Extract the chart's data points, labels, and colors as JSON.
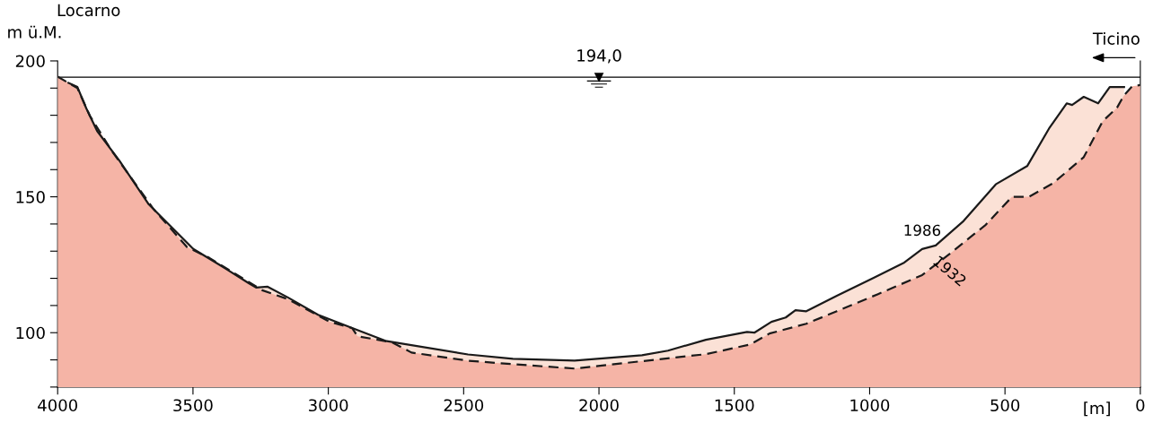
{
  "chart_data": {
    "type": "area",
    "title": "Locarno",
    "xlabel": "[m]",
    "ylabel": "m ü.M.",
    "annotations": [
      "Ticino"
    ],
    "xlim": [
      4000,
      0
    ],
    "xticks": [
      4000,
      3500,
      3000,
      2500,
      2000,
      1500,
      1000,
      500,
      0
    ],
    "ylim": [
      80,
      200
    ],
    "yticks": [
      {
        "value": 80,
        "label": null
      },
      {
        "value": 90,
        "label": null
      },
      100,
      {
        "value": 110,
        "label": null
      },
      {
        "value": 120,
        "label": null
      },
      {
        "value": 130,
        "label": null
      },
      {
        "value": 140,
        "label": null
      },
      150,
      {
        "value": 160,
        "label": null
      },
      {
        "value": 170,
        "label": null
      },
      {
        "value": 180,
        "label": null
      },
      {
        "value": 190,
        "label": null
      },
      200
    ],
    "ref_lines": [
      {
        "axis": "y",
        "value": 194,
        "label": "194,0",
        "color": "#000000",
        "line_style": "solid"
      }
    ],
    "grid": false,
    "legend": false,
    "series": [
      {
        "name": "1986",
        "color": "#fbe1d6",
        "line_style": "solid",
        "x": [
          3960,
          3927,
          3894,
          3854,
          3771,
          3665,
          3499,
          3383,
          3294,
          3267,
          3224,
          3148,
          3038,
          2912,
          2789,
          2484,
          2318,
          2090,
          1841,
          1745,
          1605,
          1453,
          1426,
          1363,
          1310,
          1274,
          1234,
          1121,
          985,
          872,
          806,
          756,
          653,
          534,
          418,
          335,
          272,
          252,
          209,
          156,
          113,
          60
        ],
        "values": [
          191.9,
          190.4,
          182.5,
          174.2,
          163.2,
          147.4,
          130.8,
          123.8,
          118.2,
          116.6,
          116.9,
          112.9,
          106.6,
          101.7,
          97.0,
          92.0,
          90.4,
          89.7,
          91.7,
          93.4,
          97.4,
          100.3,
          100.0,
          104.0,
          105.6,
          108.3,
          107.9,
          113.6,
          120.2,
          125.8,
          130.8,
          132.1,
          141.1,
          154.6,
          161.3,
          175.5,
          184.4,
          183.8,
          186.8,
          184.4,
          190.4,
          190.4
        ]
      },
      {
        "name": "1932",
        "color": "#f5b4a6",
        "line_style": "dashed",
        "x": [
          4000,
          3960,
          3927,
          3881,
          3798,
          3645,
          3522,
          3439,
          3244,
          3148,
          2995,
          2912,
          2892,
          2763,
          2693,
          2484,
          2318,
          2090,
          1605,
          1440,
          1370,
          1234,
          1121,
          969,
          806,
          707,
          571,
          474,
          411,
          322,
          209,
          139,
          86,
          60,
          30,
          0
        ],
        "values": [
          194.2,
          191.9,
          190.0,
          179.8,
          166.6,
          145.4,
          131.5,
          127.5,
          115.6,
          112.3,
          104.0,
          101.7,
          98.7,
          96.4,
          92.7,
          89.7,
          88.4,
          86.8,
          92.1,
          95.7,
          99.7,
          103.3,
          107.9,
          114.2,
          121.2,
          128.8,
          139.7,
          150.0,
          150.0,
          155.0,
          164.6,
          177.8,
          182.8,
          187.4,
          190.7,
          191.1
        ]
      }
    ]
  }
}
